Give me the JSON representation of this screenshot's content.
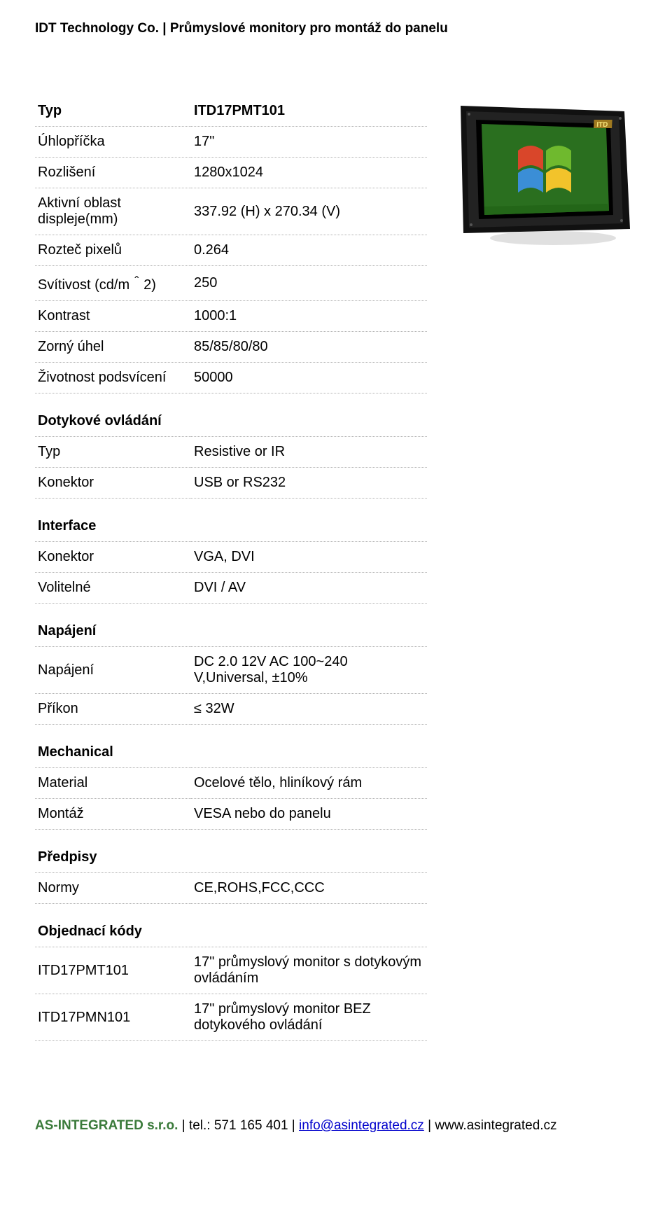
{
  "header": {
    "company": "IDT Technology Co.",
    "sep": " | ",
    "subtitle": "Průmyslové monitory pro montáž do panelu"
  },
  "title_row": {
    "label": "Typ",
    "value": "ITD17PMT101"
  },
  "specs_main": [
    {
      "label": "Úhlopříčka",
      "value": "17\""
    },
    {
      "label": "Rozlišení",
      "value": "1280x1024"
    },
    {
      "label": "Aktivní oblast displeje(mm)",
      "value": "337.92 (H) x 270.34 (V)"
    },
    {
      "label": "Rozteč pixelů",
      "value": "0.264"
    },
    {
      "label": "Svítivost (cd/m＾2)",
      "value": "250"
    },
    {
      "label": "Kontrast",
      "value": "1000:1"
    },
    {
      "label": "Zorný úhel",
      "value": "85/85/80/80"
    },
    {
      "label": "Životnost podsvícení",
      "value": "50000"
    }
  ],
  "sections": [
    {
      "header": "Dotykové ovládání",
      "rows": [
        {
          "label": "Typ",
          "value": "Resistive or IR"
        },
        {
          "label": "Konektor",
          "value": "USB or RS232"
        }
      ]
    },
    {
      "header": "Interface",
      "rows": [
        {
          "label": "Konektor",
          "value": "VGA, DVI"
        },
        {
          "label": "Volitelné",
          "value": "DVI / AV"
        }
      ]
    },
    {
      "header": "Napájení",
      "rows": [
        {
          "label": "Napájení",
          "value": "DC 2.0 12V  AC 100~240 V,Universal, ±10%"
        },
        {
          "label": "Příkon",
          "value": "≤ 32W"
        }
      ]
    },
    {
      "header": "Mechanical",
      "rows": [
        {
          "label": "Material",
          "value": "Ocelové tělo, hliníkový rám"
        },
        {
          "label": "Montáž",
          "value": "VESA nebo do panelu"
        }
      ]
    },
    {
      "header": "Předpisy",
      "rows": [
        {
          "label": "Normy",
          "value": "CE,ROHS,FCC,CCC"
        }
      ]
    },
    {
      "header": "Objednací kódy",
      "rows": [
        {
          "label": "ITD17PMT101",
          "value": "17\" průmyslový monitor s dotykovým ovládáním"
        },
        {
          "label": "ITD17PMN101",
          "value": "17\" průmyslový monitor BEZ dotykového ovládání"
        }
      ]
    }
  ],
  "footer": {
    "company": "AS-INTEGRATED s.r.o.",
    "tel_label": " | tel.: ",
    "tel": "571 165 401",
    "sep2": " | ",
    "email": "info@asintegrated.cz",
    "sep3": " | ",
    "web": "www.asintegrated.cz"
  },
  "image": {
    "frame_color": "#1a1a1a",
    "screen_bg": "#2a6f1f",
    "logo_text": "ITD",
    "logo_bg": "#a07a20",
    "desc": "industrial-panel-monitor"
  }
}
